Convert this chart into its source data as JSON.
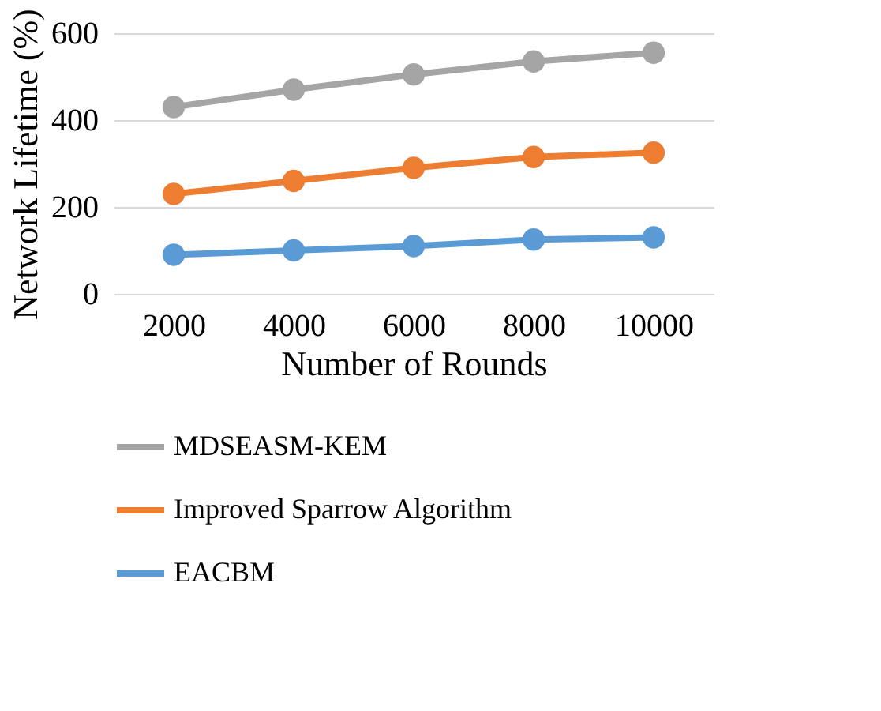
{
  "chart_data": {
    "type": "line",
    "xlabel": "Number of Rounds",
    "ylabel": "Network Lifetime (%)",
    "categories": [
      "2000",
      "4000",
      "6000",
      "8000",
      "10000"
    ],
    "series": [
      {
        "name": "MDSEASM-KEM",
        "color": "#a5a5a5",
        "values": [
          430,
          470,
          505,
          535,
          555
        ]
      },
      {
        "name": "Improved Sparrow Algorithm",
        "color": "#ed7d31",
        "values": [
          230,
          260,
          290,
          315,
          325
        ]
      },
      {
        "name": "EACBM",
        "color": "#5b9bd5",
        "values": [
          90,
          100,
          110,
          125,
          130
        ]
      }
    ],
    "ylim": [
      0,
      600
    ],
    "yticks": [
      0,
      200,
      400,
      600
    ],
    "grid": "y",
    "legend": "bottom",
    "marker": "circle",
    "line_style": "solid"
  }
}
